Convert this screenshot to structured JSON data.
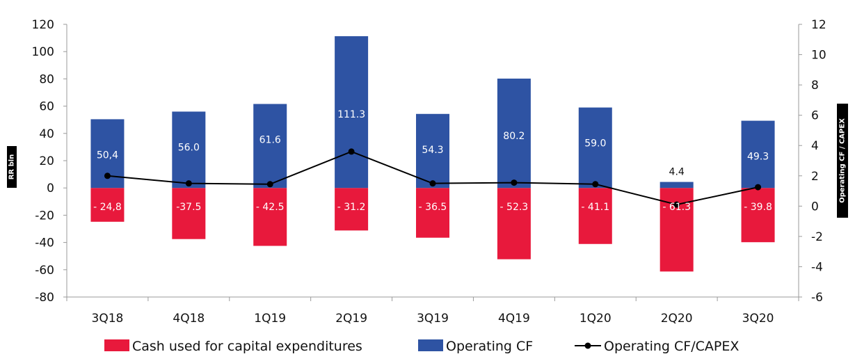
{
  "chart_data": {
    "type": "bar",
    "categories": [
      "3Q18",
      "4Q18",
      "1Q19",
      "2Q19",
      "3Q19",
      "4Q19",
      "1Q20",
      "2Q20",
      "3Q20"
    ],
    "series": [
      {
        "name": "Cash used for capital expenditures",
        "kind": "bar",
        "axis": "left",
        "color": "#e8193c",
        "values": [
          -24.8,
          -37.5,
          -42.5,
          -31.2,
          -36.5,
          -52.3,
          -41.1,
          -61.3,
          -39.8
        ],
        "labels": [
          "- 24,8",
          "-37.5",
          "- 42.5",
          "- 31.2",
          "- 36.5",
          "- 52.3",
          "- 41.1",
          "- 61.3",
          "- 39.8"
        ]
      },
      {
        "name": "Operating CF",
        "kind": "bar",
        "axis": "left",
        "color": "#2e53a3",
        "values": [
          50.4,
          56.0,
          61.6,
          111.3,
          54.3,
          80.2,
          59.0,
          4.4,
          49.3
        ],
        "labels": [
          "50,4",
          "56.0",
          "61.6",
          "111.3",
          "54.3",
          "80.2",
          "59.0",
          "4.4",
          "49.3"
        ]
      },
      {
        "name": "Operating CF/CAPEX",
        "kind": "line",
        "axis": "right",
        "color": "#000000",
        "values": [
          2.0,
          1.5,
          1.45,
          3.6,
          1.5,
          1.55,
          1.45,
          0.1,
          1.25
        ]
      }
    ],
    "y_left": {
      "label": "RR bln",
      "range": [
        -80,
        120
      ],
      "ticks": [
        -80,
        -60,
        -40,
        -20,
        0,
        20,
        40,
        60,
        80,
        100,
        120
      ]
    },
    "y_right": {
      "label": "Operating CF / CAPEX",
      "range": [
        -6,
        12
      ],
      "ticks": [
        -6,
        -4,
        -2,
        0,
        2,
        4,
        6,
        8,
        10,
        12
      ]
    },
    "grid": false,
    "legend": "bottom"
  }
}
